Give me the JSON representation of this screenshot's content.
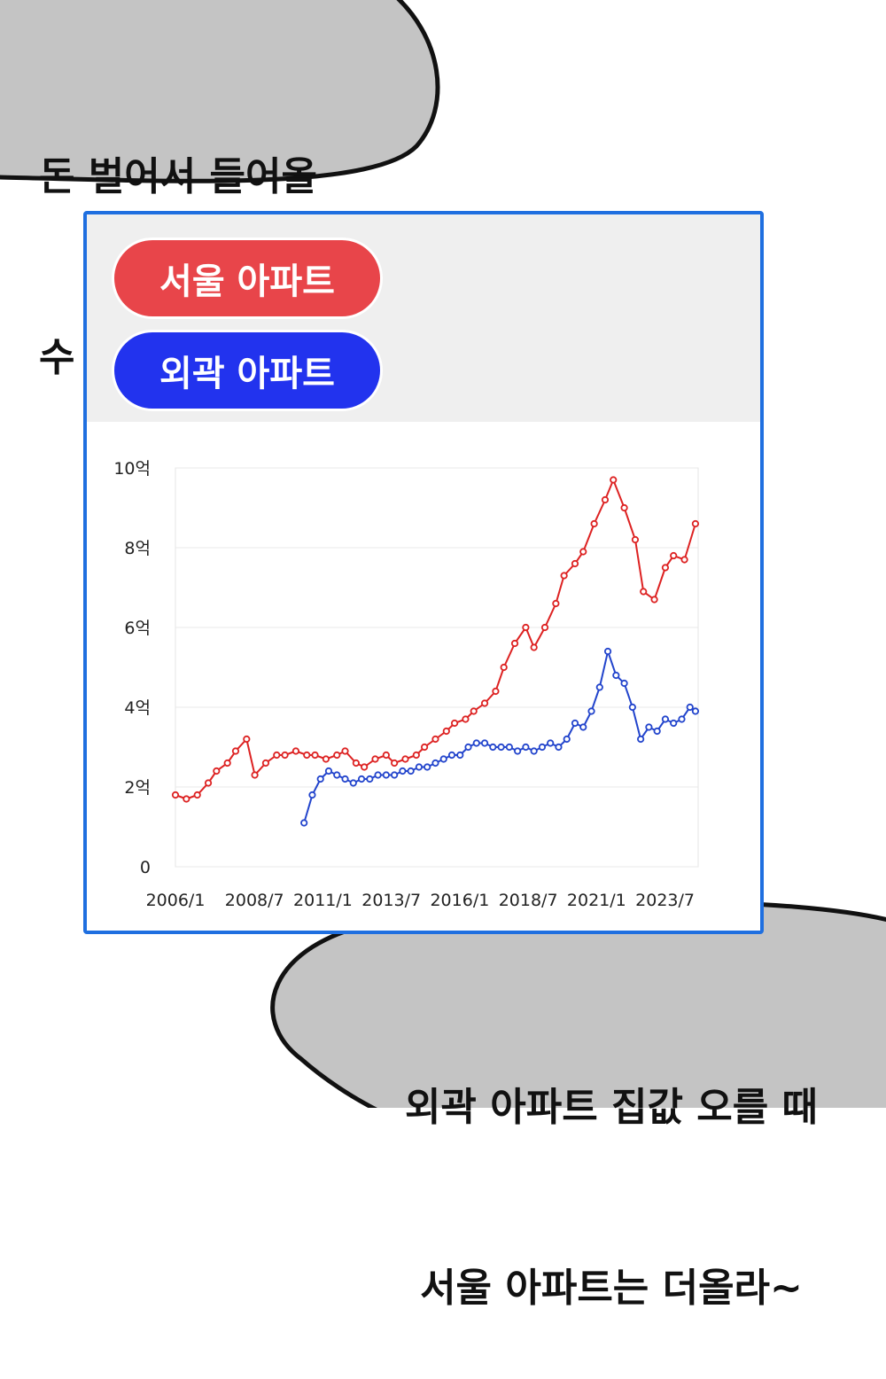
{
  "top_bubble": {
    "line1": "돈 벌어서 들어올",
    "line2": "수 있을 거 같지?"
  },
  "bottom_bubble": {
    "line1": "외곽 아파트 집값 오를 때",
    "line2": "서울 아파트는 더올라~"
  },
  "colors": {
    "seoul": "#e8454a",
    "suburb": "#2233ee",
    "seoul_line": "#dd2222",
    "suburb_line": "#2244cc",
    "border": "#1f6fe0"
  },
  "chart_data": {
    "type": "line",
    "legend": [
      "서울 아파트",
      "외곽 아파트"
    ],
    "ylim": [
      0,
      10
    ],
    "y_ticks": [
      "0",
      "2억",
      "4억",
      "6억",
      "8억",
      "10억"
    ],
    "x_ticks": [
      "2006/1",
      "2008/7",
      "2011/1",
      "2013/7",
      "2016/1",
      "2018/7",
      "2021/1",
      "2023/7"
    ],
    "xlim": [
      2006.0,
      2025.1
    ],
    "grid": true,
    "series": [
      {
        "name": "서울 아파트",
        "x": [
          2006.0,
          2006.4,
          2006.8,
          2007.2,
          2007.5,
          2007.9,
          2008.2,
          2008.6,
          2008.9,
          2009.3,
          2009.7,
          2010.0,
          2010.4,
          2010.8,
          2011.1,
          2011.5,
          2011.9,
          2012.2,
          2012.6,
          2012.9,
          2013.3,
          2013.7,
          2014.0,
          2014.4,
          2014.8,
          2015.1,
          2015.5,
          2015.9,
          2016.2,
          2016.6,
          2016.9,
          2017.3,
          2017.7,
          2018.0,
          2018.4,
          2018.8,
          2019.1,
          2019.5,
          2019.9,
          2020.2,
          2020.6,
          2020.9,
          2021.3,
          2021.7,
          2022.0,
          2022.4,
          2022.8,
          2023.1,
          2023.5,
          2023.9,
          2024.2,
          2024.6,
          2025.0
        ],
        "values": [
          1.8,
          1.7,
          1.8,
          2.1,
          2.4,
          2.6,
          2.9,
          3.2,
          2.3,
          2.6,
          2.8,
          2.8,
          2.9,
          2.8,
          2.8,
          2.7,
          2.8,
          2.9,
          2.6,
          2.5,
          2.7,
          2.8,
          2.6,
          2.7,
          2.8,
          3.0,
          3.2,
          3.4,
          3.6,
          3.7,
          3.9,
          4.1,
          4.4,
          5.0,
          5.6,
          6.0,
          5.5,
          6.0,
          6.6,
          7.3,
          7.6,
          7.9,
          8.6,
          9.2,
          9.7,
          9.0,
          8.2,
          6.9,
          6.7,
          7.5,
          7.8,
          7.7,
          8.6
        ]
      },
      {
        "name": "외곽 아파트",
        "x": [
          2010.7,
          2011.0,
          2011.3,
          2011.6,
          2011.9,
          2012.2,
          2012.5,
          2012.8,
          2013.1,
          2013.4,
          2013.7,
          2014.0,
          2014.3,
          2014.6,
          2014.9,
          2015.2,
          2015.5,
          2015.8,
          2016.1,
          2016.4,
          2016.7,
          2017.0,
          2017.3,
          2017.6,
          2017.9,
          2018.2,
          2018.5,
          2018.8,
          2019.1,
          2019.4,
          2019.7,
          2020.0,
          2020.3,
          2020.6,
          2020.9,
          2021.2,
          2021.5,
          2021.8,
          2022.1,
          2022.4,
          2022.7,
          2023.0,
          2023.3,
          2023.6,
          2023.9,
          2024.2,
          2024.5,
          2024.8,
          2025.0
        ],
        "values": [
          1.1,
          1.8,
          2.2,
          2.4,
          2.3,
          2.2,
          2.1,
          2.2,
          2.2,
          2.3,
          2.3,
          2.3,
          2.4,
          2.4,
          2.5,
          2.5,
          2.6,
          2.7,
          2.8,
          2.8,
          3.0,
          3.1,
          3.1,
          3.0,
          3.0,
          3.0,
          2.9,
          3.0,
          2.9,
          3.0,
          3.1,
          3.0,
          3.2,
          3.6,
          3.5,
          3.9,
          4.5,
          5.4,
          4.8,
          4.6,
          4.0,
          3.2,
          3.5,
          3.4,
          3.7,
          3.6,
          3.7,
          4.0,
          3.9
        ]
      }
    ]
  }
}
